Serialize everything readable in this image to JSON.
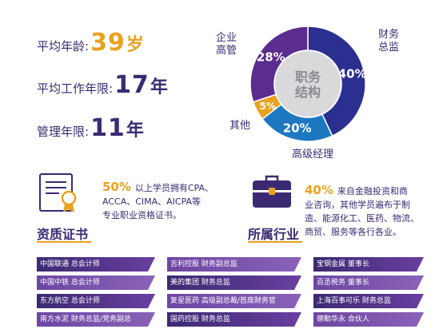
{
  "stats": {
    "age": {
      "label": "平均年龄:",
      "value": "39",
      "unit": "岁"
    },
    "work_years": {
      "label": "平均工作年限:",
      "value": "17",
      "unit": "年"
    },
    "mgmt_years": {
      "label": "管理年限:",
      "value": "11",
      "unit": "年"
    }
  },
  "chart_data": {
    "type": "pie",
    "title": "职务\n结构",
    "center_label_lines": [
      "职务",
      "结构"
    ],
    "slices": [
      {
        "name": "财务总监",
        "label_lines": [
          "财务",
          "总监"
        ],
        "value": 40,
        "display": "40%",
        "color": "#2b2f8f"
      },
      {
        "name": "高级经理",
        "label_lines": [
          "高级经理"
        ],
        "value": 20,
        "display": "20%",
        "color": "#1d78c1"
      },
      {
        "name": "其他",
        "label_lines": [
          "其他"
        ],
        "value": 5,
        "display": "5%",
        "color": "#e9a11f"
      },
      {
        "name": "企业高管",
        "label_lines": [
          "企业",
          "高管"
        ],
        "value": 28,
        "display": "28%",
        "color": "#5b2d8e"
      }
    ]
  },
  "qualification": {
    "title": "资质证书",
    "percent": "50%",
    "lines": [
      "以上学员拥有CPA、",
      "ACCA、CIMA、AICPA等",
      "专业职业资格证书。"
    ]
  },
  "industry": {
    "title": "所属行业",
    "percent": "40%",
    "lines": [
      "来自金融投资和商",
      "业咨询，其他学员遍布于制",
      "造、能源化工、医药、物流、",
      "商贸、服务等各行各业。"
    ]
  },
  "tags": [
    [
      "中国联通 总会计师",
      "吉利控股 财务副总监",
      "宝钢金属 董事长"
    ],
    [
      "中国中铁 总会计师",
      "美的集团 财务总监",
      "百丞税务 董事长"
    ],
    [
      "东方航空 总会计师",
      "复星医药 高级副总裁/首席财务官",
      "上海百事可乐 财务总监"
    ],
    [
      "南方水泥 财务总监/党务副总",
      "国药控股 财务总监",
      "德勤华永 合伙人"
    ]
  ],
  "colors": {
    "accent": "#e9a11f",
    "primary": "#3b2a72",
    "tag_dark": "#3b2a72",
    "tag_light": "#8a62b8"
  }
}
